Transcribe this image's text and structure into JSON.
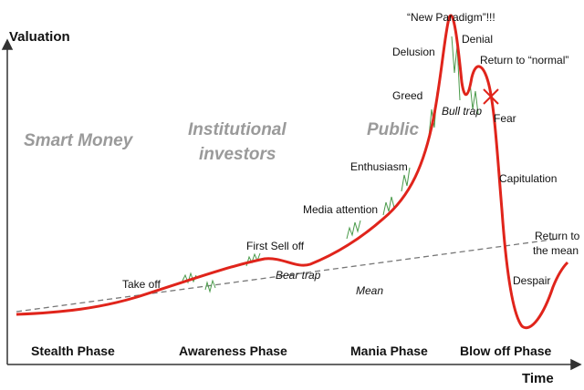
{
  "axes": {
    "y_label": "Valuation",
    "x_label": "Time"
  },
  "phases": [
    "Stealth Phase",
    "Awareness Phase",
    "Mania Phase",
    "Blow off Phase"
  ],
  "groups": {
    "smart_money": "Smart Money",
    "institutional": [
      "Institutional",
      "investors"
    ],
    "public": "Public"
  },
  "annotations": {
    "take_off": "Take off",
    "first_sell_off": "First Sell off",
    "bear_trap": "Bear trap",
    "mean": "Mean",
    "media_attention": "Media attention",
    "enthusiasm": "Enthusiasm",
    "greed": "Greed",
    "delusion": "Delusion",
    "new_paradigm": "“New Paradigm”!!!",
    "denial": "Denial",
    "return_to_normal": "Return to “normal”",
    "bull_trap": "Bull trap",
    "fear": "Fear",
    "capitulation": "Capitulation",
    "despair": "Despair",
    "return_to_mean": [
      "Return to",
      "the mean"
    ]
  }
}
